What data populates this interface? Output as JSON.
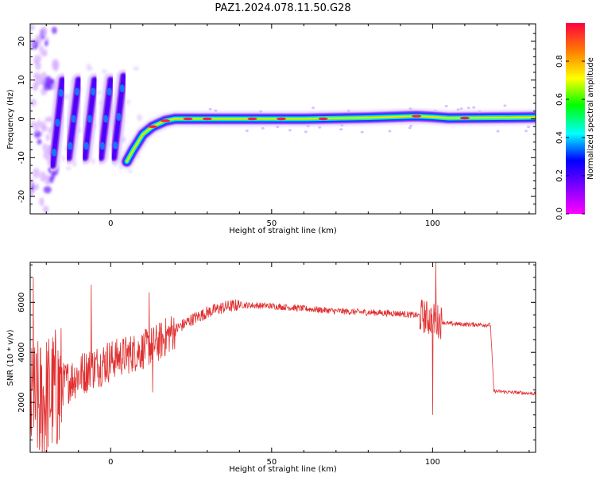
{
  "title": "PAZ1.2024.078.11.50.G28",
  "chart_data": [
    {
      "type": "heatmap",
      "xlabel": "Height of straight line (km)",
      "ylabel": "Frequency (Hz)",
      "xlim": [
        -25,
        132
      ],
      "ylim": [
        -24.5,
        24.5
      ],
      "x_ticks": [
        0,
        50,
        100
      ],
      "y_ticks": [
        -20,
        -10,
        0,
        10,
        20
      ],
      "colorbar": {
        "label": "Normalized spectral amplitude",
        "range": [
          0,
          1
        ],
        "ticks": [
          0.0,
          0.2,
          0.4,
          0.6,
          0.8
        ],
        "colormap": "gist_rainbow",
        "colors": [
          "#ff00ff",
          "#8000ff",
          "#0000ff",
          "#00ffff",
          "#00ff00",
          "#ffff00",
          "#ff8000",
          "#ff0040"
        ]
      },
      "ridge": [
        [
          5,
          -11
        ],
        [
          7,
          -8
        ],
        [
          10,
          -4
        ],
        [
          13,
          -2
        ],
        [
          17,
          -0.5
        ],
        [
          20,
          0
        ],
        [
          40,
          0
        ],
        [
          60,
          0
        ],
        [
          80,
          0.3
        ],
        [
          95,
          0.7
        ],
        [
          100,
          0.5
        ],
        [
          105,
          0.2
        ],
        [
          120,
          0.3
        ],
        [
          132,
          0.4
        ]
      ],
      "streaks": [
        {
          "x_start": -18,
          "x_end": -15,
          "y_start": -12,
          "y_end": 10
        },
        {
          "x_start": -13,
          "x_end": -10,
          "y_start": -10,
          "y_end": 10
        },
        {
          "x_start": -8,
          "x_end": -5,
          "y_start": -10,
          "y_end": 10
        },
        {
          "x_start": -3,
          "x_end": 0,
          "y_start": -10,
          "y_end": 10
        },
        {
          "x_start": 1,
          "x_end": 4,
          "y_start": -10,
          "y_end": 11
        }
      ]
    },
    {
      "type": "line",
      "xlabel": "Height of straight line (km)",
      "ylabel": "SNR (10 * v/v)",
      "xlim": [
        -25,
        132
      ],
      "ylim": [
        0,
        7600
      ],
      "x_ticks": [
        0,
        50,
        100
      ],
      "y_ticks": [
        2000,
        4000,
        6000
      ],
      "line_color": "#e03030",
      "series_outline": [
        [
          -25,
          1700
        ],
        [
          -20,
          2200
        ],
        [
          -15,
          2700
        ],
        [
          -10,
          3100
        ],
        [
          -5,
          3400
        ],
        [
          0,
          3700
        ],
        [
          5,
          3900
        ],
        [
          10,
          4100
        ],
        [
          15,
          4400
        ],
        [
          20,
          4900
        ],
        [
          25,
          5300
        ],
        [
          30,
          5600
        ],
        [
          35,
          5800
        ],
        [
          40,
          5900
        ],
        [
          50,
          5850
        ],
        [
          60,
          5750
        ],
        [
          70,
          5650
        ],
        [
          80,
          5600
        ],
        [
          90,
          5550
        ],
        [
          97,
          5450
        ],
        [
          100,
          5300
        ],
        [
          105,
          5150
        ],
        [
          110,
          5120
        ],
        [
          118,
          5100
        ],
        [
          119,
          2450
        ],
        [
          125,
          2400
        ],
        [
          132,
          2350
        ]
      ],
      "spikes": [
        [
          -24,
          7000
        ],
        [
          -22,
          300
        ],
        [
          -19,
          3300
        ],
        [
          -16,
          500
        ],
        [
          -6,
          6700
        ],
        [
          -4,
          3000
        ],
        [
          12,
          6400
        ],
        [
          13,
          2400
        ],
        [
          100,
          1500
        ],
        [
          101,
          7600
        ]
      ]
    }
  ]
}
